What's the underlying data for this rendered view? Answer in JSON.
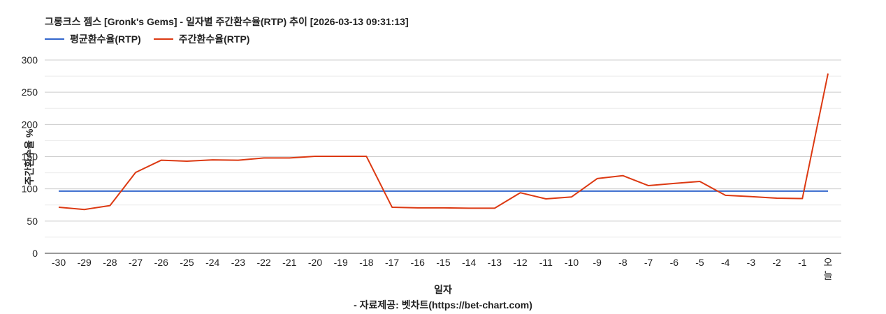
{
  "title": "그롱크스 젬스 [Gronk's Gems] - 일자별 주간환수율(RTP) 추이 [2026-03-13 09:31:13]",
  "legend": [
    {
      "label": "평균환수율(RTP)",
      "color": "#3366cc"
    },
    {
      "label": "주간환수율(RTP)",
      "color": "#dc3912"
    }
  ],
  "ylabel": "주간환수율 %",
  "xlabel": "일자",
  "source": "- 자료제공: 벳차트(https://bet-chart.com)",
  "chart_data": {
    "type": "line",
    "title": "그롱크스 젬스 [Gronk's Gems] - 일자별 주간환수율(RTP) 추이 [2026-03-13 09:31:13]",
    "xlabel": "일자",
    "ylabel": "주간환수율 %",
    "ylim": [
      0,
      300
    ],
    "yticks": [
      0,
      50,
      100,
      150,
      200,
      250,
      300
    ],
    "grid": true,
    "legend_position": "top",
    "categories": [
      "-30",
      "-29",
      "-28",
      "-27",
      "-26",
      "-25",
      "-24",
      "-23",
      "-22",
      "-21",
      "-20",
      "-19",
      "-18",
      "-17",
      "-16",
      "-15",
      "-14",
      "-13",
      "-12",
      "-11",
      "-10",
      "-9",
      "-8",
      "-7",
      "-6",
      "-5",
      "-4",
      "-3",
      "-2",
      "-1",
      "오늘"
    ],
    "series": [
      {
        "name": "평균환수율(RTP)",
        "color": "#3366cc",
        "values": [
          96.5,
          96.5,
          96.5,
          96.5,
          96.5,
          96.5,
          96.5,
          96.5,
          96.5,
          96.5,
          96.5,
          96.5,
          96.5,
          96.5,
          96.5,
          96.5,
          96.5,
          96.5,
          96.5,
          96.5,
          96.5,
          96.5,
          96.5,
          96.5,
          96.5,
          96.5,
          96.5,
          96.5,
          96.5,
          96.5,
          96.5
        ]
      },
      {
        "name": "주간환수율(RTP)",
        "color": "#dc3912",
        "values": [
          71.5,
          68,
          74,
          125.5,
          144.5,
          143,
          145,
          144.5,
          148,
          148,
          150.5,
          150.5,
          150.5,
          71.5,
          70.5,
          70.5,
          70,
          70,
          94,
          84.5,
          87.5,
          116,
          120.5,
          105,
          108.5,
          111.5,
          90,
          88,
          85.5,
          85,
          279
        ]
      }
    ]
  }
}
